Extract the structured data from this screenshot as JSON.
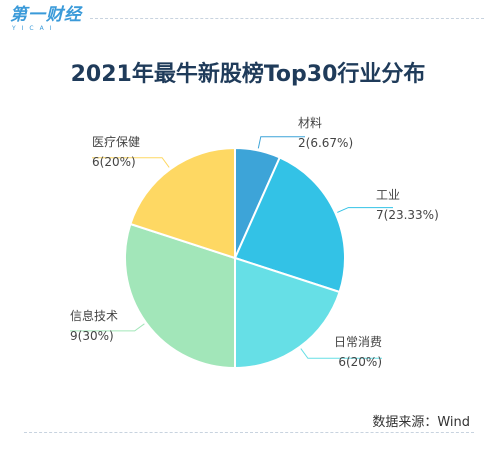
{
  "logo": {
    "main": "第一财经",
    "sub": "YICAI"
  },
  "chart_data": {
    "type": "pie",
    "title": "2021年最牛新股榜Top30行业分布",
    "slices": [
      {
        "name": "材料",
        "value": 2,
        "label": "2(6.67%)",
        "color": "#3da4d8"
      },
      {
        "name": "工业",
        "value": 7,
        "label": "7(23.33%)",
        "color": "#33c2e6"
      },
      {
        "name": "日常消费",
        "value": 6,
        "label": "6(20%)",
        "color": "#66dfe6"
      },
      {
        "name": "信息技术",
        "value": 9,
        "label": "9(30%)",
        "color": "#a2e6b9"
      },
      {
        "name": "医疗保健",
        "value": 6,
        "label": "6(20%)",
        "color": "#fed863"
      }
    ]
  },
  "source": "数据来源：Wind"
}
